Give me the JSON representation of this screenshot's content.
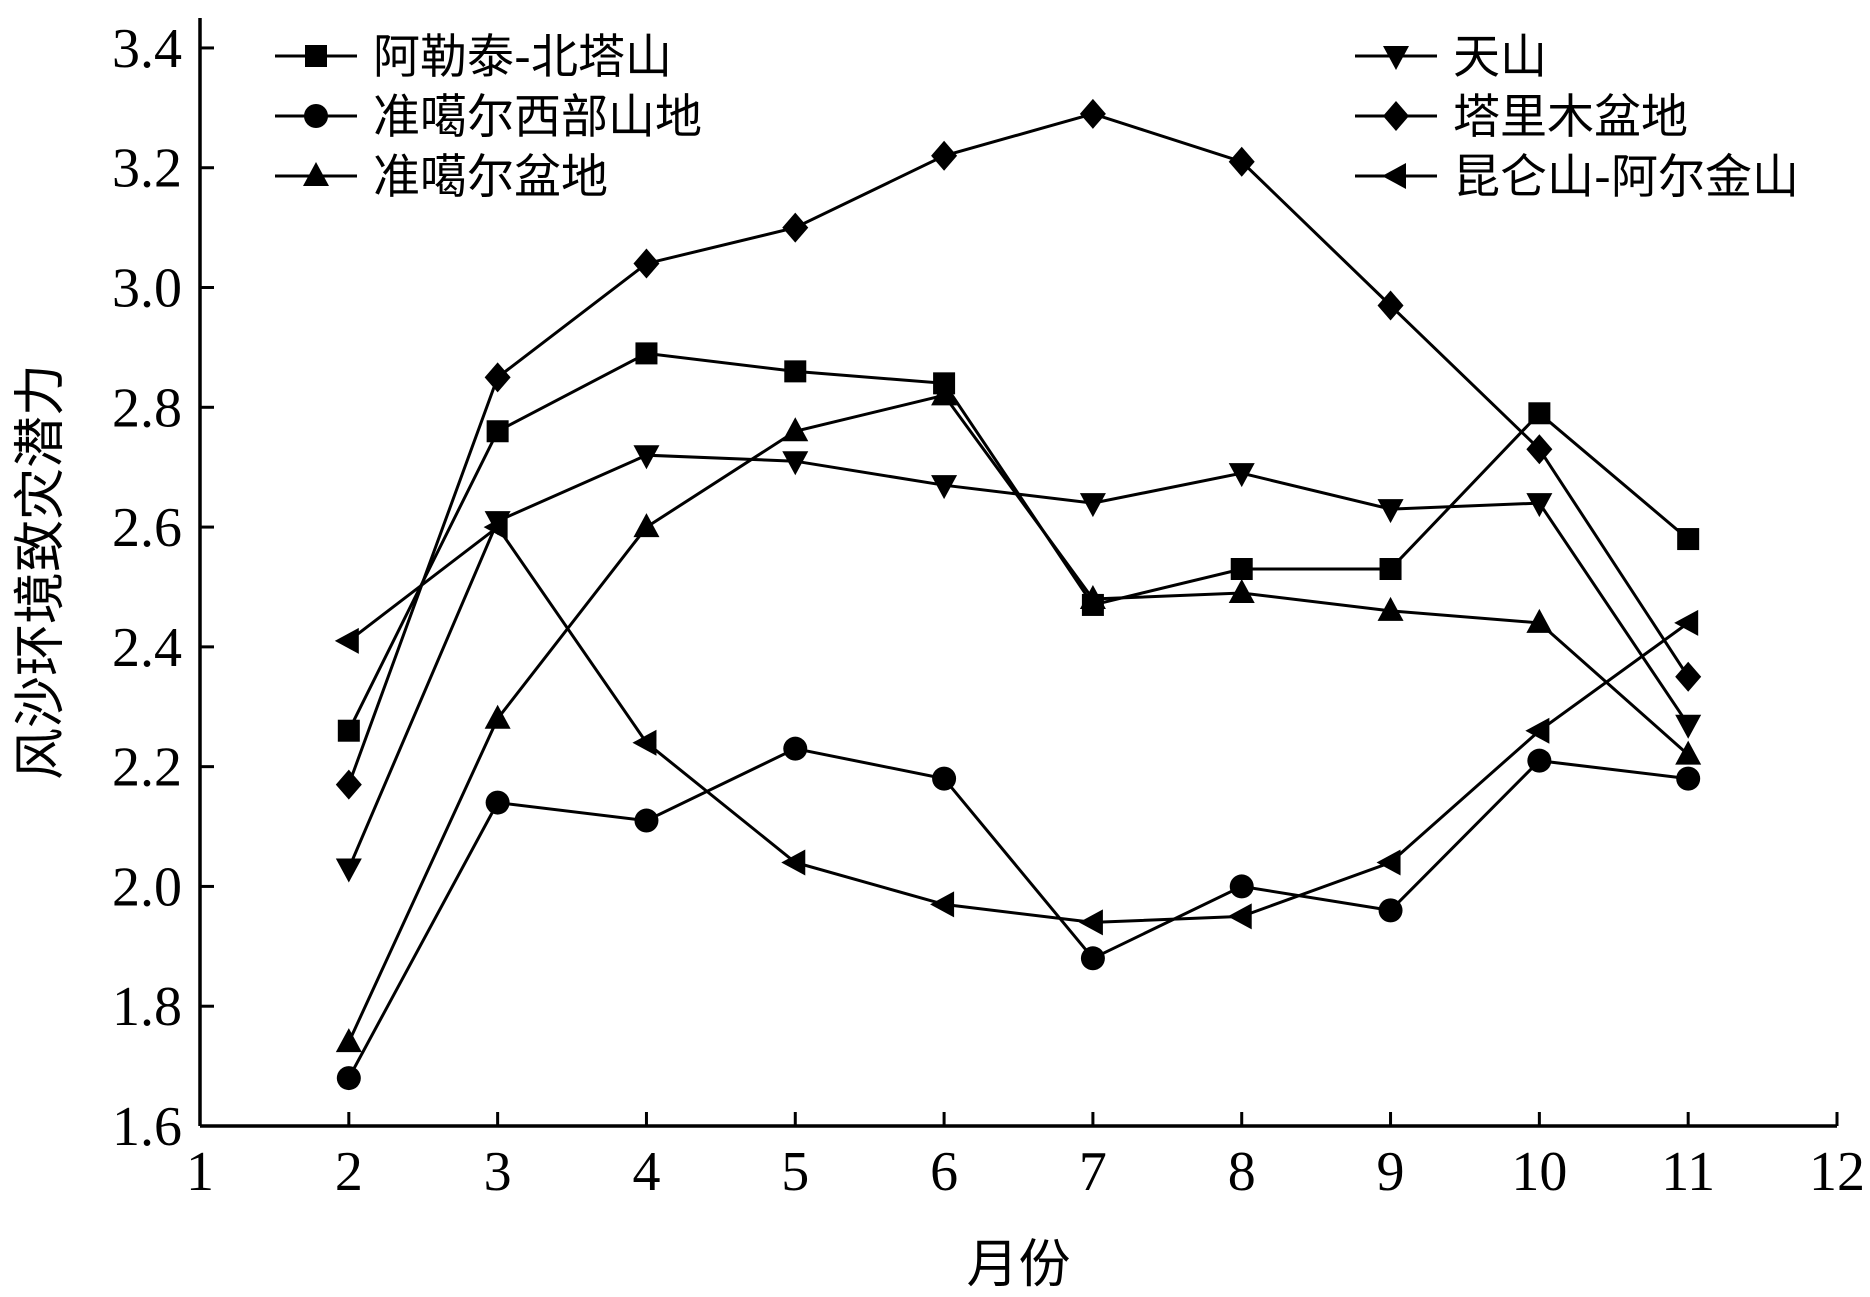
{
  "chart_data": {
    "type": "line",
    "title": "",
    "xlabel": "月份",
    "ylabel": "风沙环境致灾潜力",
    "xlim": [
      1,
      12
    ],
    "ylim": [
      1.6,
      3.45
    ],
    "x_ticks": [
      "1",
      "2",
      "3",
      "4",
      "5",
      "6",
      "7",
      "8",
      "9",
      "10",
      "11",
      "12"
    ],
    "y_ticks": [
      "1.6",
      "1.8",
      "2.0",
      "2.2",
      "2.4",
      "2.6",
      "2.8",
      "3.0",
      "3.2",
      "3.4"
    ],
    "grid": false,
    "legend_position": "top",
    "x": [
      2,
      3,
      4,
      5,
      6,
      7,
      8,
      9,
      10,
      11
    ],
    "series": [
      {
        "name": "阿勒泰-北塔山",
        "marker": "square",
        "values": [
          2.26,
          2.76,
          2.89,
          2.86,
          2.84,
          2.47,
          2.53,
          2.53,
          2.79,
          2.58
        ]
      },
      {
        "name": "准噶尔西部山地",
        "marker": "circle",
        "values": [
          1.68,
          2.14,
          2.11,
          2.23,
          2.18,
          1.88,
          2.0,
          1.96,
          2.21,
          2.18
        ]
      },
      {
        "name": "准噶尔盆地",
        "marker": "triangle-up",
        "values": [
          1.74,
          2.28,
          2.6,
          2.76,
          2.82,
          2.48,
          2.49,
          2.46,
          2.44,
          2.22
        ]
      },
      {
        "name": "天山",
        "marker": "triangle-down",
        "values": [
          2.03,
          2.61,
          2.72,
          2.71,
          2.67,
          2.64,
          2.69,
          2.63,
          2.64,
          2.27
        ]
      },
      {
        "name": "塔里木盆地",
        "marker": "diamond",
        "values": [
          2.17,
          2.85,
          3.04,
          3.1,
          3.22,
          3.29,
          3.21,
          2.97,
          2.73,
          2.35
        ]
      },
      {
        "name": "昆仑山-阿尔金山",
        "marker": "triangle-left",
        "values": [
          2.41,
          2.6,
          2.24,
          2.04,
          1.97,
          1.94,
          1.95,
          2.04,
          2.26,
          2.44
        ]
      }
    ]
  }
}
